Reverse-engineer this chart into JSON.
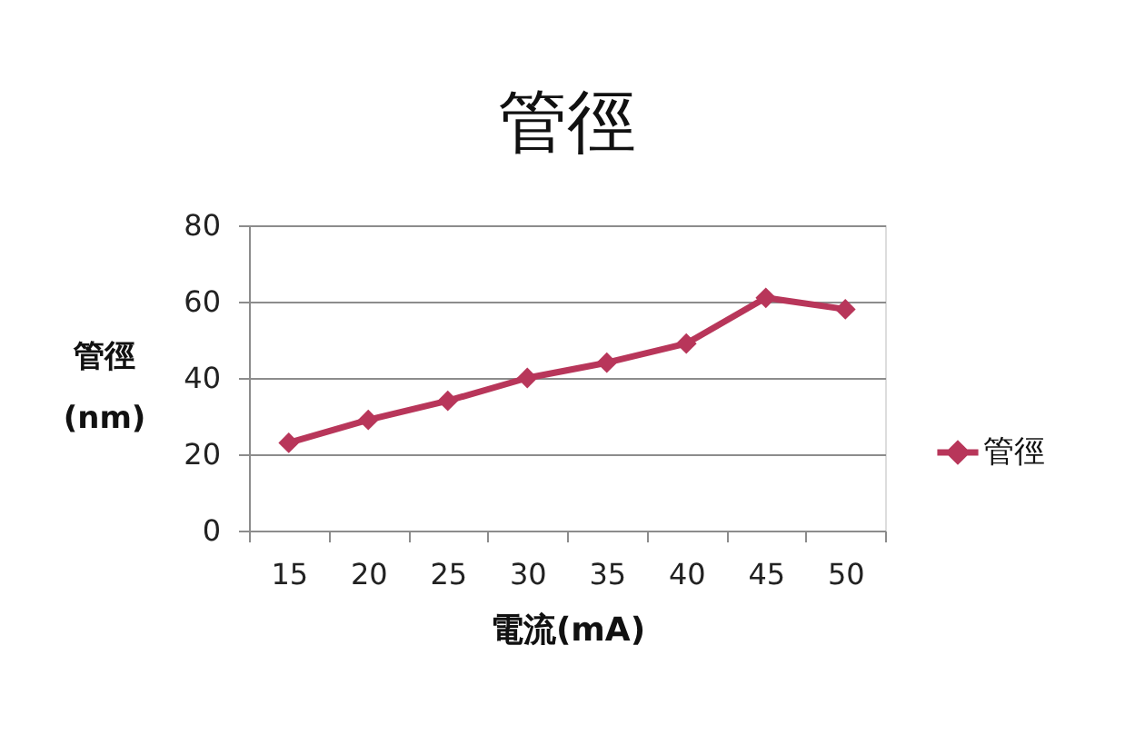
{
  "chart_data": {
    "type": "line",
    "title": "管徑",
    "xlabel": "電流(mA)",
    "ylabel": "管徑\n(nm)",
    "categories": [
      "15",
      "20",
      "25",
      "30",
      "35",
      "40",
      "45",
      "50"
    ],
    "series": [
      {
        "name": "管徑",
        "color": "#b8365a",
        "values": [
          23,
          29,
          34,
          40,
          44,
          49,
          61,
          58
        ]
      }
    ],
    "ylim": [
      0,
      80
    ],
    "yticks": [
      0,
      20,
      40,
      60,
      80
    ],
    "grid": "y",
    "legend": "right",
    "marker": "diamond",
    "line_style": "solid"
  }
}
